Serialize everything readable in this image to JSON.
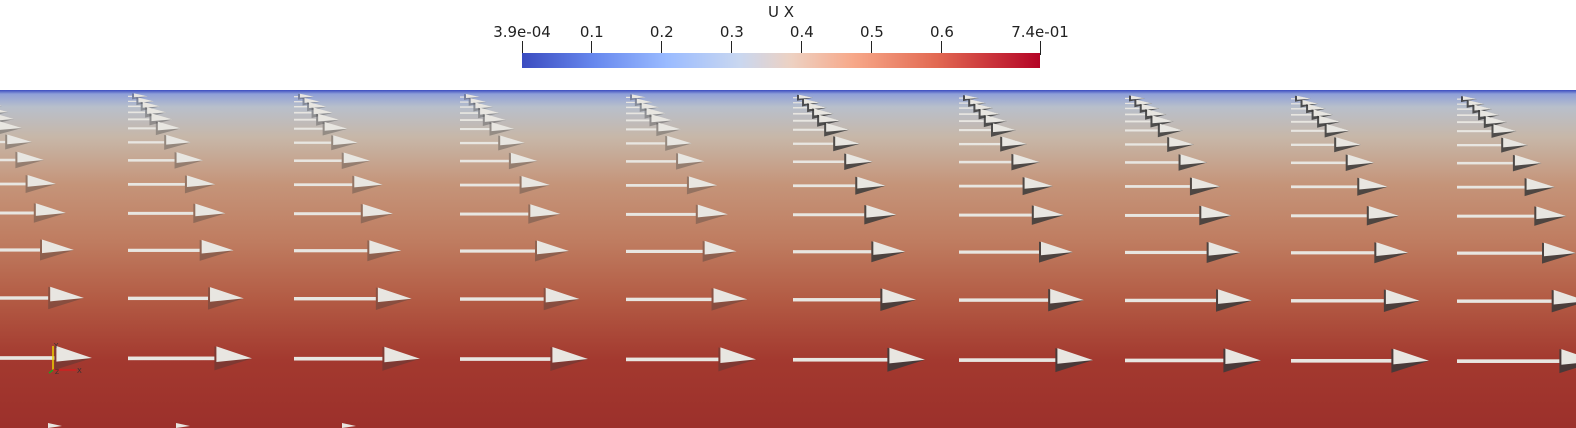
{
  "legend": {
    "title": "U X",
    "ticks": [
      {
        "label": "3.9e-04",
        "value": 0.00039
      },
      {
        "label": "0.1",
        "value": 0.1
      },
      {
        "label": "0.2",
        "value": 0.2
      },
      {
        "label": "0.3",
        "value": 0.3
      },
      {
        "label": "0.4",
        "value": 0.4
      },
      {
        "label": "0.5",
        "value": 0.5
      },
      {
        "label": "0.6",
        "value": 0.6
      },
      {
        "label": "7.4e-01",
        "value": 0.74
      }
    ],
    "range": [
      0.00039,
      0.74
    ],
    "colormap": "Cool to Warm"
  },
  "colors": {
    "low": "#3b4cc0",
    "mid": "#dddddd",
    "high": "#b40426",
    "glyph": "#e8e6e1",
    "glyph_shadow": "#3a3a3a"
  },
  "axes": {
    "x_label": "X",
    "y_label": "Y",
    "z_label": "Z"
  }
}
